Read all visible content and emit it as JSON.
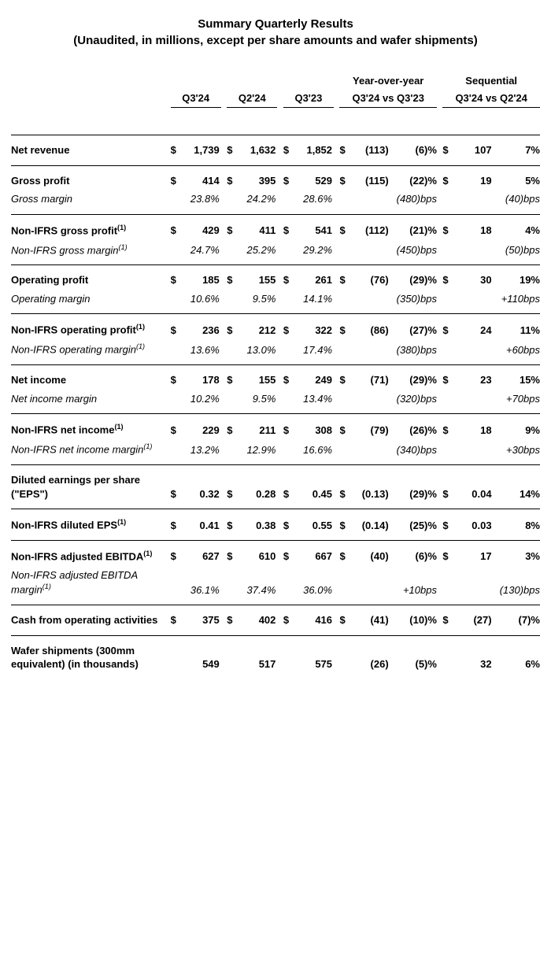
{
  "title_line1": "Summary Quarterly Results",
  "title_line2": "(Unaudited, in millions, except per share amounts and wafer shipments)",
  "headers": {
    "q3_24": "Q3'24",
    "q2_24": "Q2'24",
    "q3_23": "Q3'23",
    "yoy_top": "Year-over-year",
    "yoy_sub": "Q3'24 vs Q3'23",
    "seq_top": "Sequential",
    "seq_sub": "Q3'24 vs Q2'24"
  },
  "dollar": "$",
  "rows": [
    {
      "label": "Net revenue",
      "sup": "",
      "q3_24": "1,739",
      "q2_24": "1,632",
      "q3_23": "1,852",
      "yoy_d": "(113)",
      "yoy_p": "(6)%",
      "seq_d": "107",
      "seq_p": "7%",
      "cur": true
    },
    {
      "label": "Gross profit",
      "sup": "",
      "q3_24": "414",
      "q2_24": "395",
      "q3_23": "529",
      "yoy_d": "(115)",
      "yoy_p": "(22)%",
      "seq_d": "19",
      "seq_p": "5%",
      "cur": true,
      "sub": {
        "label": "Gross margin",
        "sup": "",
        "q3_24": "23.8%",
        "q2_24": "24.2%",
        "q3_23": "28.6%",
        "yoy_p": "(480)bps",
        "seq_p": "(40)bps"
      }
    },
    {
      "label": "Non-IFRS gross profit",
      "sup": "(1)",
      "q3_24": "429",
      "q2_24": "411",
      "q3_23": "541",
      "yoy_d": "(112)",
      "yoy_p": "(21)%",
      "seq_d": "18",
      "seq_p": "4%",
      "cur": true,
      "sub": {
        "label": "Non-IFRS gross margin",
        "sup": "(1)",
        "q3_24": "24.7%",
        "q2_24": "25.2%",
        "q3_23": "29.2%",
        "yoy_p": "(450)bps",
        "seq_p": "(50)bps"
      }
    },
    {
      "label": "Operating profit",
      "sup": "",
      "q3_24": "185",
      "q2_24": "155",
      "q3_23": "261",
      "yoy_d": "(76)",
      "yoy_p": "(29)%",
      "seq_d": "30",
      "seq_p": "19%",
      "cur": true,
      "sub": {
        "label": "Operating margin",
        "sup": "",
        "q3_24": "10.6%",
        "q2_24": "9.5%",
        "q3_23": "14.1%",
        "yoy_p": "(350)bps",
        "seq_p": "+110bps"
      }
    },
    {
      "label": "Non-IFRS operating profit",
      "sup": "(1)",
      "q3_24": "236",
      "q2_24": "212",
      "q3_23": "322",
      "yoy_d": "(86)",
      "yoy_p": "(27)%",
      "seq_d": "24",
      "seq_p": "11%",
      "cur": true,
      "sub": {
        "label": "Non-IFRS operating margin",
        "sup": "(1)",
        "q3_24": "13.6%",
        "q2_24": "13.0%",
        "q3_23": "17.4%",
        "yoy_p": "(380)bps",
        "seq_p": "+60bps"
      }
    },
    {
      "label": "Net income",
      "sup": "",
      "q3_24": "178",
      "q2_24": "155",
      "q3_23": "249",
      "yoy_d": "(71)",
      "yoy_p": "(29)%",
      "seq_d": "23",
      "seq_p": "15%",
      "cur": true,
      "sub": {
        "label": "Net income margin",
        "sup": "",
        "q3_24": "10.2%",
        "q2_24": "9.5%",
        "q3_23": "13.4%",
        "yoy_p": "(320)bps",
        "seq_p": "+70bps"
      }
    },
    {
      "label": "Non-IFRS net income",
      "sup": "(1)",
      "q3_24": "229",
      "q2_24": "211",
      "q3_23": "308",
      "yoy_d": "(79)",
      "yoy_p": "(26)%",
      "seq_d": "18",
      "seq_p": "9%",
      "cur": true,
      "sub": {
        "label": "Non-IFRS net income margin",
        "sup": "(1)",
        "q3_24": "13.2%",
        "q2_24": "12.9%",
        "q3_23": "16.6%",
        "yoy_p": "(340)bps",
        "seq_p": "+30bps"
      }
    },
    {
      "label": "Diluted earnings per share (\"EPS\")",
      "sup": "",
      "q3_24": "0.32",
      "q2_24": "0.28",
      "q3_23": "0.45",
      "yoy_d": "(0.13)",
      "yoy_p": "(29)%",
      "seq_d": "0.04",
      "seq_p": "14%",
      "cur": true
    },
    {
      "label": "Non-IFRS diluted EPS",
      "sup": "(1)",
      "q3_24": "0.41",
      "q2_24": "0.38",
      "q3_23": "0.55",
      "yoy_d": "(0.14)",
      "yoy_p": "(25)%",
      "seq_d": "0.03",
      "seq_p": "8%",
      "cur": true
    },
    {
      "label": "Non-IFRS adjusted EBITDA",
      "sup": "(1)",
      "q3_24": "627",
      "q2_24": "610",
      "q3_23": "667",
      "yoy_d": "(40)",
      "yoy_p": "(6)%",
      "seq_d": "17",
      "seq_p": "3%",
      "cur": true,
      "sub": {
        "label": "Non-IFRS adjusted EBITDA margin",
        "sup": "(1)",
        "q3_24": "36.1%",
        "q2_24": "37.4%",
        "q3_23": "36.0%",
        "yoy_p": "+10bps",
        "seq_p": "(130)bps"
      }
    },
    {
      "label": "Cash from operating activities",
      "sup": "",
      "q3_24": "375",
      "q2_24": "402",
      "q3_23": "416",
      "yoy_d": "(41)",
      "yoy_p": "(10)%",
      "seq_d": "(27)",
      "seq_p": "(7)%",
      "cur": true
    },
    {
      "label": "Wafer shipments (300mm equivalent) (in thousands)",
      "sup": "",
      "q3_24": "549",
      "q2_24": "517",
      "q3_23": "575",
      "yoy_d": "(26)",
      "yoy_p": "(5)%",
      "seq_d": "32",
      "seq_p": "6%",
      "cur": false
    }
  ]
}
